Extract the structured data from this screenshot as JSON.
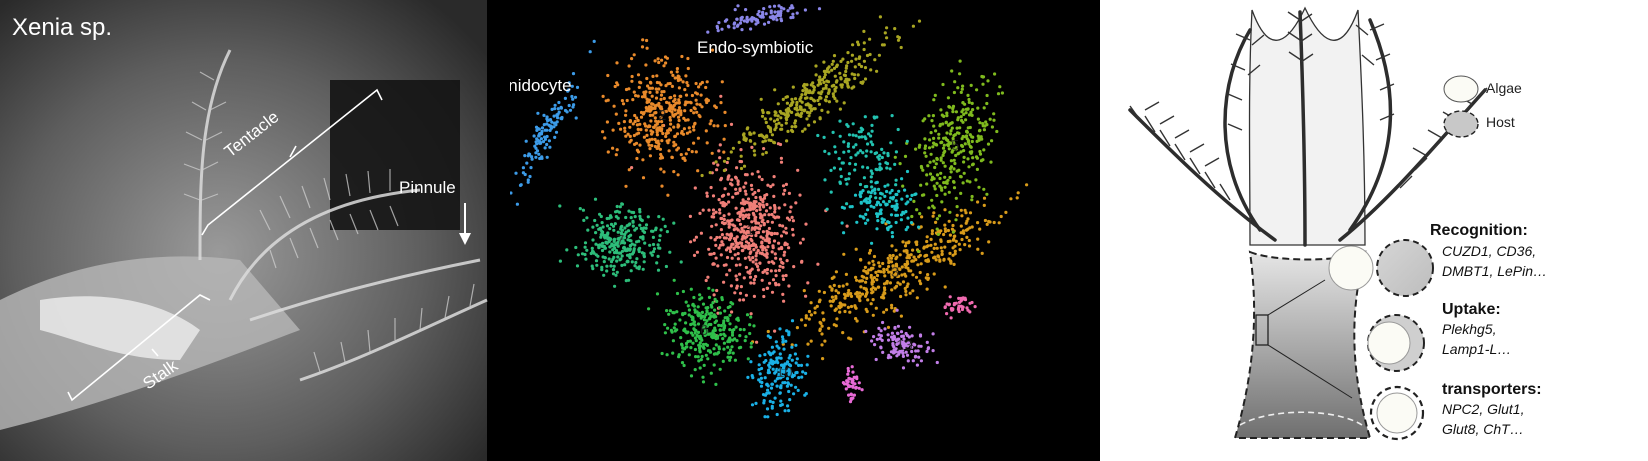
{
  "photo": {
    "title": "Xenia sp.",
    "labels": {
      "tentacle": "Tentacle",
      "pinnule": "Pinnule",
      "stalk": "Stalk"
    }
  },
  "tsne": {
    "labels": {
      "cnidocyte": "Cnidocyte",
      "endosymbiotic": "Endo-symbiotic"
    },
    "clusters": [
      {
        "id": "1",
        "color": "#f07f78"
      },
      {
        "id": "2",
        "color": "#e98a2b"
      },
      {
        "id": "3",
        "color": "#d89b1a"
      },
      {
        "id": "4",
        "color": "#a8a522"
      },
      {
        "id": "5",
        "color": "#7fba1e"
      },
      {
        "id": "6",
        "color": "#2fbf4a"
      },
      {
        "id": "7",
        "color": "#2dbd7a"
      },
      {
        "id": "8",
        "color": "#23c2b0"
      },
      {
        "id": "9",
        "color": "#1ec3c8"
      },
      {
        "id": "10",
        "color": "#1ab0e6"
      },
      {
        "id": "11",
        "color": "#3c9be8"
      },
      {
        "id": "12",
        "color": "#8a86e8"
      },
      {
        "id": "13",
        "color": "#c27ee8"
      },
      {
        "id": "14",
        "color": "#e86ad6"
      },
      {
        "id": "15",
        "color": "#f06ab0"
      }
    ]
  },
  "schematic": {
    "legend": {
      "algae": "Algae",
      "host": "Host"
    },
    "categories": [
      {
        "title": "Recognition:",
        "genes_line1": "CUZD1, CD36,",
        "genes_line2": "DMBT1, LePin…"
      },
      {
        "title": "Uptake:",
        "genes_line1": "Plekhg5,",
        "genes_line2": "Lamp1-L…"
      },
      {
        "title": "transporters:",
        "genes_line1": "NPC2, Glut1,",
        "genes_line2": "Glut8, ChT…"
      }
    ]
  }
}
